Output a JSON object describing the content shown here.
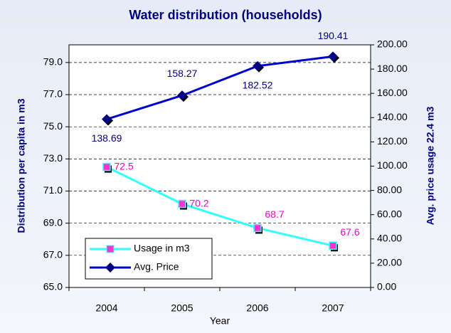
{
  "chart_data": {
    "type": "line",
    "title": "Water distribution (households)",
    "xlabel": "Year",
    "ylabel": "Distribution per capita in m3",
    "y2label": "Avg. price usage 22.4 m3",
    "categories": [
      "2004",
      "2005",
      "2006",
      "2007"
    ],
    "series": [
      {
        "name": "Usage in m3",
        "color": "#33ffff",
        "marker_color": "#ff33cc",
        "label_color": "#ff00cc",
        "values": [
          72.5,
          70.2,
          68.7,
          67.6
        ]
      },
      {
        "name": "Avg. Price",
        "color": "#0000cc",
        "marker_color": "#000080",
        "label_color": "#000080",
        "axis": "y2",
        "values": [
          138.69,
          158.27,
          182.52,
          190.41
        ]
      }
    ],
    "ylim": [
      65,
      80.1
    ],
    "yticks": [
      {
        "value": 65,
        "label": "65.0"
      },
      {
        "value": 67,
        "label": "67.0"
      },
      {
        "value": 69,
        "label": "69.0"
      },
      {
        "value": 71,
        "label": "71.0"
      },
      {
        "value": 73,
        "label": "73.0"
      },
      {
        "value": 75,
        "label": "75.0"
      },
      {
        "value": 77,
        "label": "77.0"
      },
      {
        "value": 79,
        "label": "79.0"
      }
    ],
    "y2lim": [
      0,
      200
    ],
    "y2ticks": [
      {
        "value": 0,
        "label": "0.00"
      },
      {
        "value": 20,
        "label": "20.00"
      },
      {
        "value": 40,
        "label": "40.00"
      },
      {
        "value": 60,
        "label": "60.00"
      },
      {
        "value": 80,
        "label": "80.00"
      },
      {
        "value": 100,
        "label": "100.00"
      },
      {
        "value": 120,
        "label": "120.00"
      },
      {
        "value": 140,
        "label": "140.00"
      },
      {
        "value": 160,
        "label": "160.00"
      },
      {
        "value": 180,
        "label": "180.00"
      },
      {
        "value": 200,
        "label": "200.00"
      }
    ],
    "grid": true,
    "legend": "lower left"
  }
}
